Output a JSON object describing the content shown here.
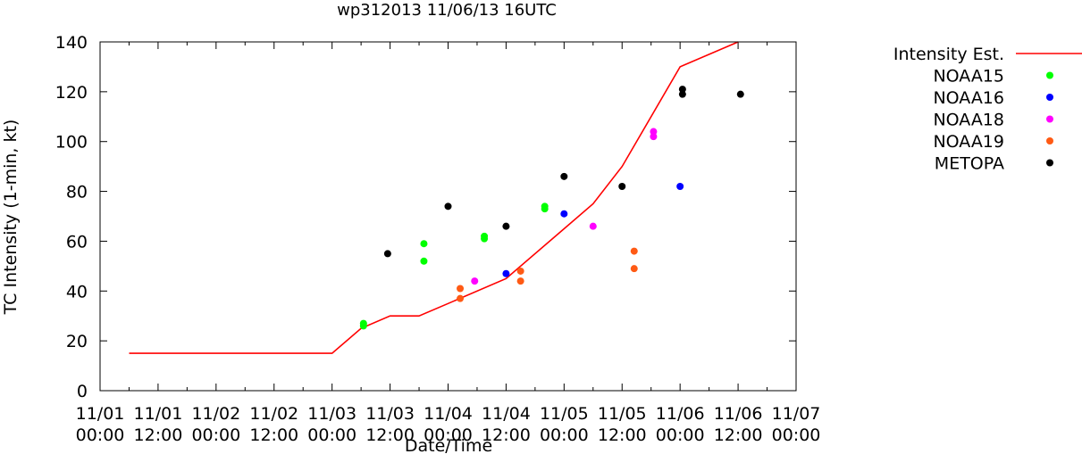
{
  "chart_data": {
    "type": "scatter",
    "title": "wp312013 11/06/13 16UTC",
    "xlabel": "Date/Time",
    "ylabel": "TC Intensity (1-min, kt)",
    "ylim": [
      0,
      140
    ],
    "yticks": [
      0,
      20,
      40,
      60,
      80,
      100,
      120,
      140
    ],
    "xlim_hours": [
      0,
      144
    ],
    "xticks": [
      {
        "h": 0,
        "date": "11/01",
        "time": "00:00"
      },
      {
        "h": 12,
        "date": "11/01",
        "time": "12:00"
      },
      {
        "h": 24,
        "date": "11/02",
        "time": "00:00"
      },
      {
        "h": 36,
        "date": "11/02",
        "time": "12:00"
      },
      {
        "h": 48,
        "date": "11/03",
        "time": "00:00"
      },
      {
        "h": 60,
        "date": "11/03",
        "time": "12:00"
      },
      {
        "h": 72,
        "date": "11/04",
        "time": "00:00"
      },
      {
        "h": 84,
        "date": "11/04",
        "time": "12:00"
      },
      {
        "h": 96,
        "date": "11/05",
        "time": "00:00"
      },
      {
        "h": 108,
        "date": "11/05",
        "time": "12:00"
      },
      {
        "h": 120,
        "date": "11/06",
        "time": "00:00"
      },
      {
        "h": 132,
        "date": "11/06",
        "time": "12:00"
      },
      {
        "h": 144,
        "date": "11/07",
        "time": "00:00"
      }
    ],
    "legend_position": "outside-right",
    "series": [
      {
        "name": "Intensity Est.",
        "kind": "line",
        "color": "#ff0000",
        "x": [
          6,
          48,
          54,
          60,
          66,
          72,
          84,
          96,
          102,
          108,
          120,
          132
        ],
        "y": [
          15,
          15,
          25,
          30,
          30,
          35,
          45,
          65,
          75,
          90,
          130,
          140
        ]
      },
      {
        "name": "NOAA15",
        "kind": "points",
        "color": "#00ff00",
        "x": [
          54.5,
          54.5,
          67.0,
          67.0,
          79.5,
          79.5,
          92.0,
          92.0
        ],
        "y": [
          27,
          26,
          59,
          52,
          62,
          61,
          74,
          73
        ]
      },
      {
        "name": "NOAA16",
        "kind": "points",
        "color": "#0000ff",
        "x": [
          84.0,
          96.0,
          120.0
        ],
        "y": [
          47,
          71,
          82
        ]
      },
      {
        "name": "NOAA18",
        "kind": "points",
        "color": "#ff00ff",
        "x": [
          77.5,
          102.0,
          114.5,
          114.5
        ],
        "y": [
          44,
          66,
          104,
          102
        ]
      },
      {
        "name": "NOAA19",
        "kind": "points",
        "color": "#ff5a14",
        "x": [
          74.5,
          74.5,
          87.0,
          87.0,
          110.5,
          110.5
        ],
        "y": [
          41,
          37,
          48,
          44,
          56,
          49
        ]
      },
      {
        "name": "METOPA",
        "kind": "points",
        "color": "#000000",
        "x": [
          59.5,
          72.0,
          84.0,
          96.0,
          108.0,
          120.5,
          120.5,
          132.5
        ],
        "y": [
          55,
          74,
          66,
          86,
          82,
          121,
          119,
          119
        ]
      }
    ]
  }
}
